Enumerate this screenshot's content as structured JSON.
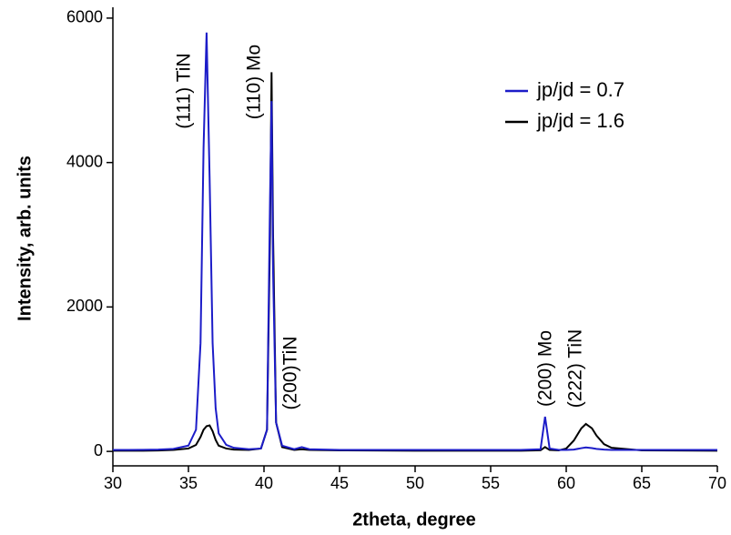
{
  "chart_data": {
    "type": "line",
    "xlabel": "2theta, degree",
    "ylabel": "Intensity, arb. units",
    "annotations": [
      "(111) TiN",
      "(110) Mo",
      "(200)TiN",
      "(200) Mo",
      "(222) TiN"
    ],
    "x": [
      30,
      31,
      32,
      33,
      34,
      35,
      35.5,
      35.8,
      36,
      36.2,
      36.4,
      36.6,
      36.8,
      37,
      37.5,
      38,
      39,
      39.8,
      40.2,
      40.4,
      40.5,
      40.6,
      40.8,
      41.2,
      42,
      42.5,
      43,
      45,
      50,
      55,
      57,
      58.3,
      58.6,
      58.9,
      59.5,
      60,
      60.5,
      61,
      61.3,
      61.7,
      62,
      62.5,
      63,
      65,
      70
    ],
    "series": [
      {
        "name": "jp/jd = 0.7",
        "color": "#1c1cc8",
        "values": [
          20,
          20,
          22,
          25,
          35,
          80,
          300,
          1500,
          4200,
          5800,
          3800,
          1500,
          600,
          250,
          90,
          50,
          30,
          40,
          300,
          3500,
          4850,
          2500,
          400,
          80,
          30,
          60,
          30,
          20,
          20,
          20,
          20,
          30,
          480,
          40,
          20,
          20,
          25,
          45,
          55,
          45,
          35,
          25,
          20,
          20,
          20
        ]
      },
      {
        "name": "jp/jd = 1.6",
        "color": "#000000",
        "values": [
          10,
          10,
          10,
          12,
          20,
          40,
          90,
          200,
          300,
          350,
          360,
          280,
          160,
          80,
          40,
          25,
          20,
          40,
          300,
          3000,
          5250,
          3000,
          400,
          60,
          20,
          30,
          20,
          15,
          10,
          10,
          10,
          15,
          60,
          20,
          15,
          40,
          150,
          320,
          380,
          320,
          220,
          100,
          50,
          15,
          10
        ]
      }
    ],
    "xlim": [
      30,
      70
    ],
    "xticks": [
      30,
      35,
      40,
      45,
      50,
      55,
      60,
      65,
      70
    ],
    "ylim": [
      -200,
      6150
    ],
    "yticks": [
      0,
      2000,
      4000,
      6000
    ],
    "legend": "upper right",
    "grid": false
  }
}
